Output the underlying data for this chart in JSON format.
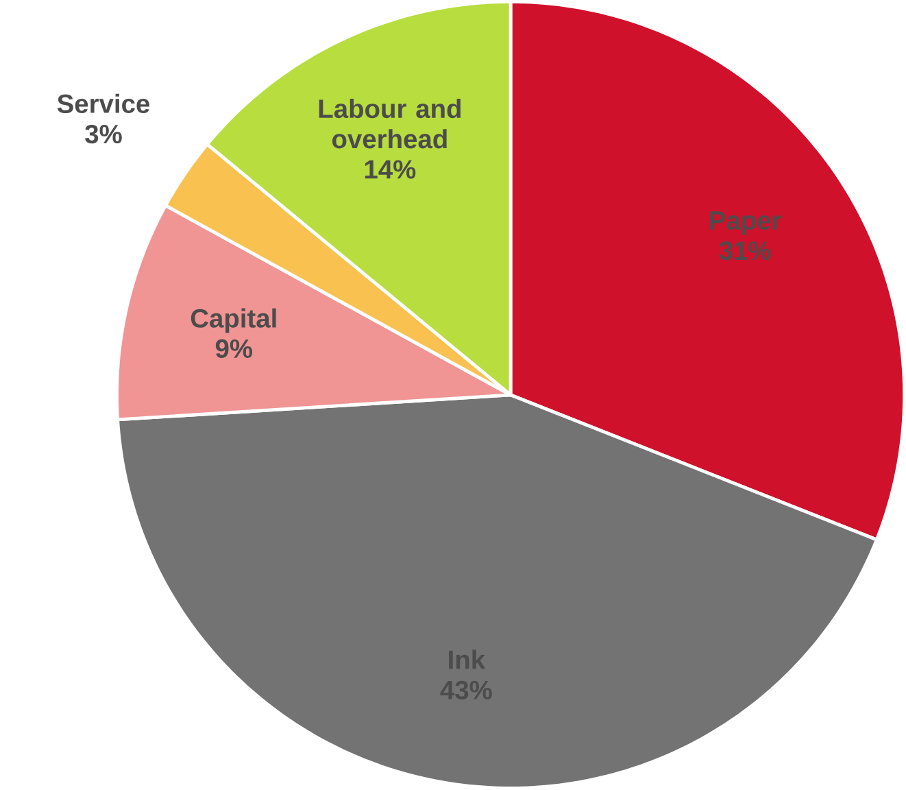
{
  "chart_data": {
    "type": "pie",
    "categories": [
      "Paper",
      "Ink",
      "Capital",
      "Service",
      "Labour and overhead"
    ],
    "values": [
      31,
      43,
      9,
      3,
      14
    ],
    "value_labels": [
      "31%",
      "43%",
      "9%",
      "3%",
      "14%"
    ],
    "colors": [
      "#d0112b",
      "#737373",
      "#f09494",
      "#f8c150",
      "#b8dd3e"
    ]
  }
}
